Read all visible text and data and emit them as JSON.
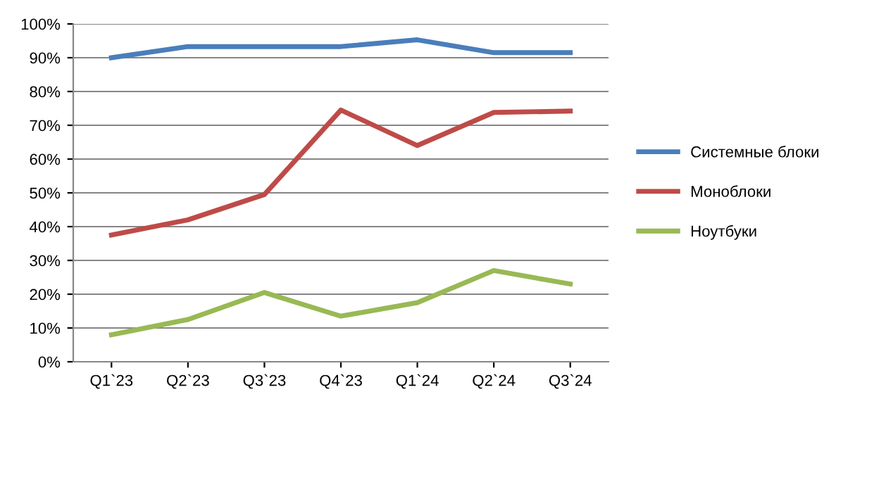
{
  "chart_data": {
    "type": "line",
    "categories": [
      "Q1`23",
      "Q2`23",
      "Q3`23",
      "Q4`23",
      "Q1`24",
      "Q2`24",
      "Q3`24"
    ],
    "series": [
      {
        "name": "Системные блоки",
        "color": "#4a7ebb",
        "values": [
          90,
          93.3,
          93.3,
          93.3,
          95.3,
          91.5,
          91.5
        ]
      },
      {
        "name": "Моноблоки",
        "color": "#be4b48",
        "values": [
          37.5,
          42,
          49.5,
          74.5,
          64,
          73.8,
          74.2
        ]
      },
      {
        "name": "Ноутбуки",
        "color": "#98b954",
        "values": [
          8,
          12.5,
          20.5,
          13.5,
          17.5,
          27,
          23
        ]
      }
    ],
    "ylim": [
      0,
      100
    ],
    "yticks": [
      {
        "value": 0,
        "label": "0%"
      },
      {
        "value": 10,
        "label": "10%"
      },
      {
        "value": 20,
        "label": "20%"
      },
      {
        "value": 30,
        "label": "30%"
      },
      {
        "value": 40,
        "label": "40%"
      },
      {
        "value": 50,
        "label": "50%"
      },
      {
        "value": 60,
        "label": "60%"
      },
      {
        "value": 70,
        "label": "70%"
      },
      {
        "value": 80,
        "label": "80%"
      },
      {
        "value": 90,
        "label": "90%"
      },
      {
        "value": 100,
        "label": "100%"
      }
    ],
    "grid": "y",
    "legend": "right",
    "marker": "none",
    "line_style": "solid"
  }
}
